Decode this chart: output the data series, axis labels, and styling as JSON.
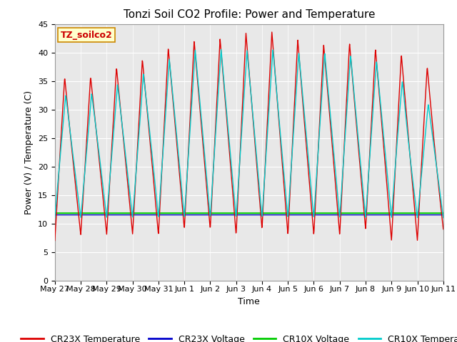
{
  "title": "Tonzi Soil CO2 Profile: Power and Temperature",
  "xlabel": "Time",
  "ylabel": "Power (V) / Temperature (C)",
  "ylim": [
    0,
    45
  ],
  "yticks": [
    0,
    5,
    10,
    15,
    20,
    25,
    30,
    35,
    40,
    45
  ],
  "annotation": "TZ_soilco2",
  "annotation_color": "#cc0000",
  "annotation_bg": "#ffffcc",
  "annotation_border": "#cc8800",
  "plot_bg": "#e8e8e8",
  "cr23x_temp_color": "#dd0000",
  "cr23x_volt_color": "#0000cc",
  "cr10x_volt_color": "#00cc00",
  "cr10x_temp_color": "#00cccc",
  "green_line_y": 11.8,
  "blue_line_y": 11.5,
  "tick_labels": [
    "May 27",
    "May 28",
    "May 29",
    "May 30",
    "May 31",
    "Jun 1",
    "Jun 2",
    "Jun 3",
    "Jun 4",
    "Jun 5",
    "Jun 6",
    "Jun 7",
    "Jun 8",
    "Jun 9",
    "Jun 10",
    "Jun 11"
  ],
  "title_fontsize": 11,
  "axis_fontsize": 9,
  "tick_fontsize": 8,
  "legend_fontsize": 9
}
